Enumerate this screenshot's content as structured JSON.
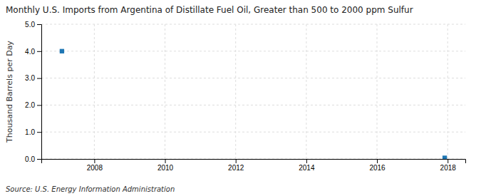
{
  "chart_data": {
    "type": "scatter",
    "title": "Monthly U.S. Imports from Argentina of Distillate Fuel Oil, Greater than 500 to 2000 ppm Sulfur",
    "y_label": "Thousand Barrels per Day",
    "annotations": [
      "Source: U.S. Energy Information Administration"
    ],
    "x": [
      2007.083,
      2017.917
    ],
    "values": [
      4.0,
      0.04
    ],
    "marker": "square",
    "xlim": [
      2006.5,
      2018.5
    ],
    "ylim": [
      0.0,
      5.0
    ],
    "xticks": [
      2008,
      2010,
      2012,
      2014,
      2016,
      2018
    ],
    "yticks": [
      {
        "value": 0.0,
        "label": "0.0"
      },
      {
        "value": 1.0,
        "label": "1.0"
      },
      {
        "value": 2.0,
        "label": "2.0"
      },
      {
        "value": 3.0,
        "label": "3.0"
      },
      {
        "value": 4.0,
        "label": "4.0"
      },
      {
        "value": 5.0,
        "label": "5.0"
      }
    ],
    "grid": true
  }
}
